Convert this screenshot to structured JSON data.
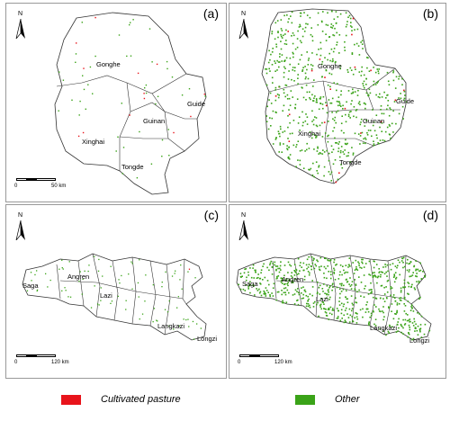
{
  "panels": [
    {
      "id": "a",
      "label": "(a)",
      "regions": [
        "Gonghe",
        "Guide",
        "Guinan",
        "Xinghai",
        "Tongde"
      ],
      "scale_max": "50 km"
    },
    {
      "id": "b",
      "label": "(b)",
      "regions": [
        "Gonghe",
        "Guide",
        "Guinan",
        "Xinghai",
        "Tongde"
      ]
    },
    {
      "id": "c",
      "label": "(c)",
      "regions": [
        "Saga",
        "Angren",
        "Lazi",
        "Langkazi",
        "Longzi"
      ],
      "scale_max": "120 km"
    },
    {
      "id": "d",
      "label": "(d)",
      "regions": [
        "Saga",
        "Angren",
        "Lazi",
        "Langkazi",
        "Longzi"
      ],
      "scale_max": "120 km"
    }
  ],
  "north": "N",
  "scale_zero": "0",
  "legend": [
    {
      "label": "Cultivated pasture",
      "color": "#e8141b"
    },
    {
      "label": "Other",
      "color": "#3aa318"
    }
  ],
  "colors": {
    "boundary": "#333333",
    "point_green": "#3aa318",
    "point_red": "#e8141b"
  }
}
